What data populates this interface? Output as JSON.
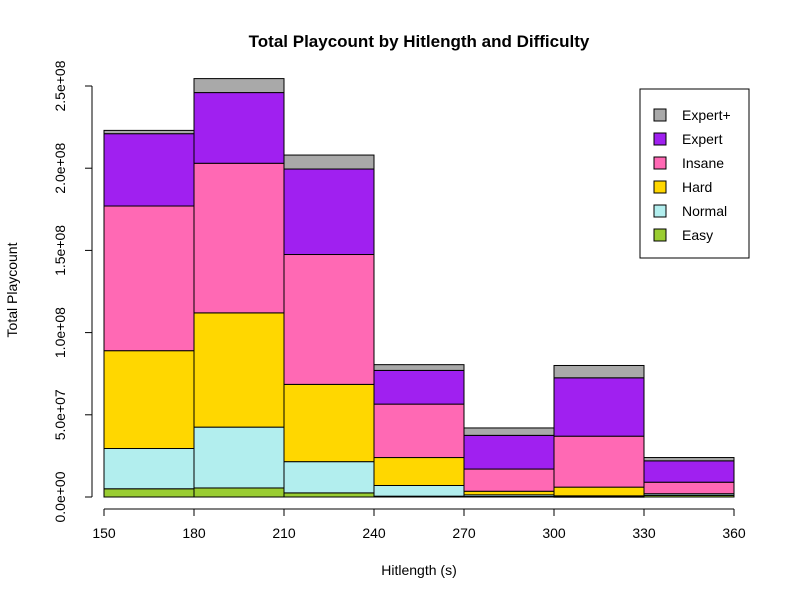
{
  "chart_data": {
    "type": "bar",
    "stacked": true,
    "title": "Total Playcount by Hitlength and Difficulty",
    "xlabel": "Hitlength (s)",
    "ylabel": "Total Playcount",
    "x_ticks": [
      "150",
      "180",
      "210",
      "240",
      "270",
      "300",
      "330",
      "360"
    ],
    "x_range": [
      150,
      360
    ],
    "bin_width": 30,
    "bins": [
      150,
      180,
      210,
      240,
      270,
      300,
      330
    ],
    "y_ticks": [
      "0.0e+00",
      "5.0e+07",
      "1.0e+08",
      "1.5e+08",
      "2.0e+08",
      "2.5e+08"
    ],
    "y_tick_values": [
      0,
      50000000,
      100000000,
      150000000,
      200000000,
      250000000
    ],
    "ylim": [
      0,
      250000000
    ],
    "legend_position": "top-right",
    "series": [
      {
        "name": "Easy",
        "color": "#9ACD32",
        "values": [
          5000000,
          5500000,
          2500000,
          500000,
          300000,
          200000,
          1000000
        ]
      },
      {
        "name": "Normal",
        "color": "#B2EEEE",
        "values": [
          24500000,
          37000000,
          19000000,
          6500000,
          1000000,
          500000,
          1000000
        ]
      },
      {
        "name": "Hard",
        "color": "#FFD700",
        "values": [
          59500000,
          69500000,
          47000000,
          17000000,
          2200000,
          5300000,
          0
        ]
      },
      {
        "name": "Insane",
        "color": "#FF69B4",
        "values": [
          88000000,
          91000000,
          79000000,
          32500000,
          13500000,
          31000000,
          7000000
        ]
      },
      {
        "name": "Expert",
        "color": "#A020F0",
        "values": [
          44000000,
          43000000,
          52000000,
          20500000,
          20500000,
          35500000,
          13000000
        ]
      },
      {
        "name": "Expert+",
        "color": "#A9A9A9",
        "values": [
          2000000,
          8500000,
          8500000,
          3500000,
          4500000,
          7500000,
          2000000
        ]
      }
    ]
  }
}
